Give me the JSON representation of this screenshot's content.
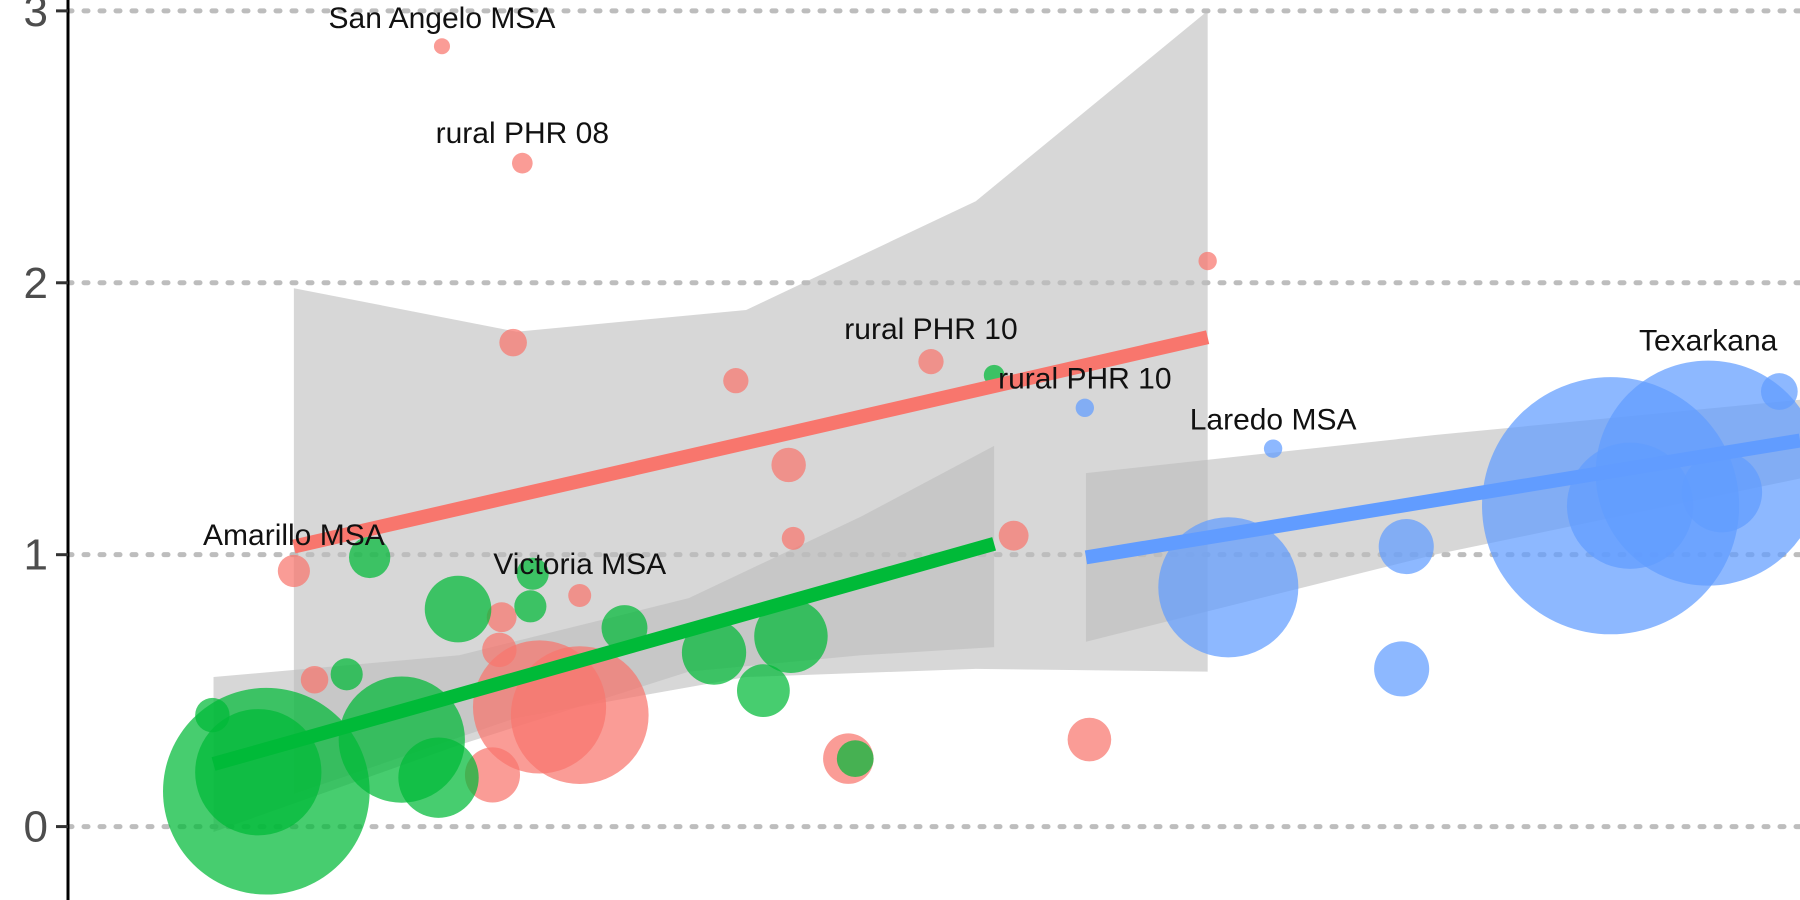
{
  "chart_data": {
    "type": "scatter",
    "ylim": [
      -0.27,
      3.04
    ],
    "xlim": [
      0,
      1568
    ],
    "grid": true,
    "yticks": [
      {
        "value": 0,
        "label": "0"
      },
      {
        "value": 1,
        "label": "1"
      },
      {
        "value": 2,
        "label": "2"
      },
      {
        "value": 3,
        "label": "3"
      }
    ],
    "colors": {
      "red": "#f8766d",
      "green": "#00ba38",
      "blue": "#619cff",
      "band": "#bdbdbd"
    },
    "series": [
      {
        "color_key": "red",
        "points": [
          {
            "x": 385,
            "y": 2.87,
            "r": 7,
            "label": "San Angelo MSA"
          },
          {
            "x": 455,
            "y": 2.44,
            "r": 9,
            "label": "rural PHR 08"
          },
          {
            "x": 1052,
            "y": 2.08,
            "r": 8
          },
          {
            "x": 447,
            "y": 1.78,
            "r": 12
          },
          {
            "x": 641,
            "y": 1.64,
            "r": 11
          },
          {
            "x": 811,
            "y": 1.71,
            "r": 11,
            "label": "rural PHR 10"
          },
          {
            "x": 687,
            "y": 1.33,
            "r": 15
          },
          {
            "x": 691,
            "y": 1.06,
            "r": 10
          },
          {
            "x": 883,
            "y": 1.07,
            "r": 13
          },
          {
            "x": 256,
            "y": 0.94,
            "r": 14,
            "label": "Amarillo MSA"
          },
          {
            "x": 505,
            "y": 0.85,
            "r": 10,
            "label": "Victoria MSA"
          },
          {
            "x": 437,
            "y": 0.77,
            "r": 13
          },
          {
            "x": 435,
            "y": 0.65,
            "r": 15
          },
          {
            "x": 274,
            "y": 0.54,
            "r": 12
          },
          {
            "x": 505,
            "y": 0.41,
            "r": 60
          },
          {
            "x": 470,
            "y": 0.44,
            "r": 58
          },
          {
            "x": 429,
            "y": 0.19,
            "r": 24
          },
          {
            "x": 739,
            "y": 0.25,
            "r": 22
          },
          {
            "x": 949,
            "y": 0.32,
            "r": 19
          }
        ]
      },
      {
        "color_key": "green",
        "points": [
          {
            "x": 322,
            "y": 0.99,
            "r": 18
          },
          {
            "x": 464,
            "y": 0.93,
            "r": 14
          },
          {
            "x": 462,
            "y": 0.81,
            "r": 14
          },
          {
            "x": 399,
            "y": 0.8,
            "r": 29
          },
          {
            "x": 544,
            "y": 0.73,
            "r": 20
          },
          {
            "x": 689,
            "y": 0.7,
            "r": 32
          },
          {
            "x": 622,
            "y": 0.64,
            "r": 28
          },
          {
            "x": 665,
            "y": 0.5,
            "r": 23
          },
          {
            "x": 302,
            "y": 0.56,
            "r": 14
          },
          {
            "x": 866,
            "y": 1.66,
            "r": 9
          },
          {
            "x": 185,
            "y": 0.41,
            "r": 15
          },
          {
            "x": 350,
            "y": 0.32,
            "r": 55
          },
          {
            "x": 382,
            "y": 0.18,
            "r": 35
          },
          {
            "x": 232,
            "y": 0.13,
            "r": 90
          },
          {
            "x": 225,
            "y": 0.2,
            "r": 55
          },
          {
            "x": 745,
            "y": 0.25,
            "r": 16
          }
        ]
      },
      {
        "color_key": "blue",
        "points": [
          {
            "x": 945,
            "y": 1.54,
            "r": 8,
            "label": "rural PHR 10"
          },
          {
            "x": 1109,
            "y": 1.39,
            "r": 8,
            "label": "Laredo MSA"
          },
          {
            "x": 1070,
            "y": 0.88,
            "r": 61
          },
          {
            "x": 1225,
            "y": 1.03,
            "r": 24
          },
          {
            "x": 1221,
            "y": 0.58,
            "r": 24
          },
          {
            "x": 1403,
            "y": 1.18,
            "r": 112
          },
          {
            "x": 1488,
            "y": 1.3,
            "r": 98,
            "label": "Texarkana"
          },
          {
            "x": 1420,
            "y": 1.18,
            "r": 55
          },
          {
            "x": 1500,
            "y": 1.23,
            "r": 35
          },
          {
            "x": 1550,
            "y": 1.6,
            "r": 16
          }
        ]
      }
    ],
    "fits": [
      {
        "color_key": "red",
        "x0": 256,
        "y0": 1.03,
        "x1": 1052,
        "y1": 1.8,
        "band": [
          [
            256,
            1.98,
            0.12
          ],
          [
            450,
            1.82,
            0.4
          ],
          [
            650,
            1.9,
            0.55
          ],
          [
            850,
            2.3,
            0.58
          ],
          [
            1052,
            3.0,
            0.57
          ]
        ]
      },
      {
        "color_key": "green",
        "x0": 186,
        "y0": 0.23,
        "x1": 866,
        "y1": 1.04,
        "band": [
          [
            186,
            0.55,
            -0.02
          ],
          [
            400,
            0.63,
            0.3
          ],
          [
            600,
            0.84,
            0.57
          ],
          [
            750,
            1.14,
            0.63
          ],
          [
            866,
            1.4,
            0.66
          ]
        ]
      },
      {
        "color_key": "blue",
        "x0": 946,
        "y0": 0.99,
        "x1": 1568,
        "y1": 1.42,
        "band": [
          [
            946,
            1.3,
            0.68
          ],
          [
            1250,
            1.44,
            1.0
          ],
          [
            1568,
            1.57,
            1.28
          ]
        ]
      }
    ]
  }
}
